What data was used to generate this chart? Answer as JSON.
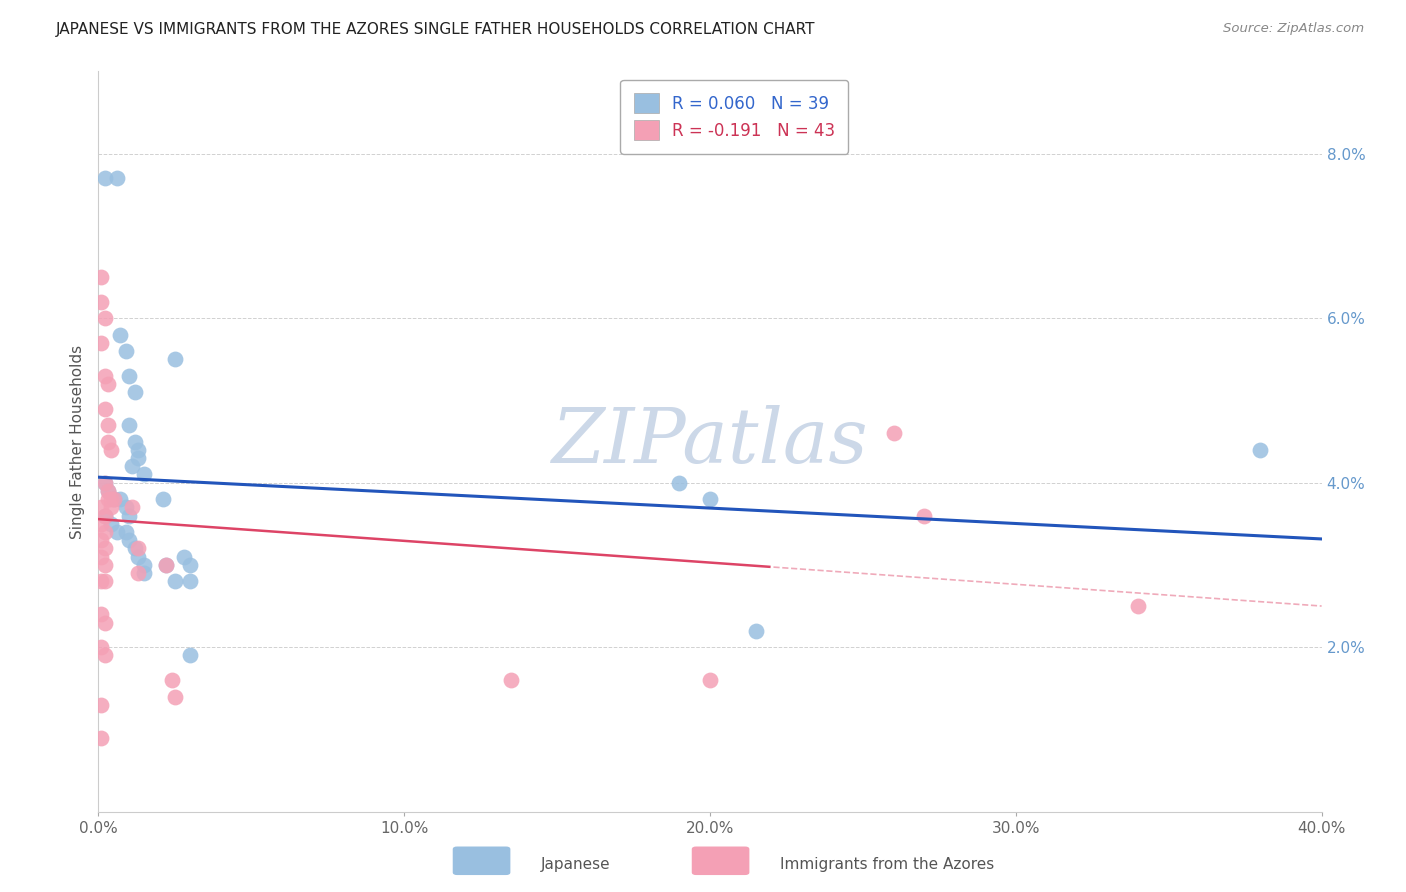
{
  "title": "JAPANESE VS IMMIGRANTS FROM THE AZORES SINGLE FATHER HOUSEHOLDS CORRELATION CHART",
  "source": "Source: ZipAtlas.com",
  "ylabel": "Single Father Households",
  "xlim": [
    0.0,
    0.4
  ],
  "ylim": [
    0.0,
    0.09
  ],
  "watermark": "ZIPatlas",
  "dot_color_japanese": "#99bfe0",
  "dot_color_azores": "#f4a0b5",
  "line_color_japanese": "#2255bb",
  "line_color_azores": "#dd4466",
  "background_color": "#ffffff",
  "watermark_color": "#ccd8e8",
  "grid_color": "#cccccc",
  "legend_label_japanese": "R = 0.060   N = 39",
  "legend_label_azores": "R = -0.191   N = 43",
  "legend_text_color_japanese": "#3366cc",
  "legend_text_color_azores": "#cc3355",
  "japanese_points": [
    [
      0.002,
      0.077
    ],
    [
      0.006,
      0.077
    ],
    [
      0.007,
      0.058
    ],
    [
      0.009,
      0.056
    ],
    [
      0.01,
      0.053
    ],
    [
      0.012,
      0.051
    ],
    [
      0.01,
      0.047
    ],
    [
      0.012,
      0.045
    ],
    [
      0.013,
      0.044
    ],
    [
      0.011,
      0.042
    ],
    [
      0.002,
      0.04
    ],
    [
      0.003,
      0.039
    ],
    [
      0.005,
      0.038
    ],
    [
      0.007,
      0.038
    ],
    [
      0.009,
      0.037
    ],
    [
      0.01,
      0.036
    ],
    [
      0.013,
      0.043
    ],
    [
      0.015,
      0.041
    ],
    [
      0.002,
      0.036
    ],
    [
      0.004,
      0.035
    ],
    [
      0.006,
      0.034
    ],
    [
      0.009,
      0.034
    ],
    [
      0.01,
      0.033
    ],
    [
      0.012,
      0.032
    ],
    [
      0.013,
      0.031
    ],
    [
      0.015,
      0.03
    ],
    [
      0.015,
      0.029
    ],
    [
      0.022,
      0.03
    ],
    [
      0.025,
      0.028
    ],
    [
      0.028,
      0.031
    ],
    [
      0.03,
      0.03
    ],
    [
      0.03,
      0.028
    ],
    [
      0.021,
      0.038
    ],
    [
      0.025,
      0.055
    ],
    [
      0.03,
      0.019
    ],
    [
      0.19,
      0.04
    ],
    [
      0.2,
      0.038
    ],
    [
      0.215,
      0.022
    ],
    [
      0.38,
      0.044
    ]
  ],
  "azores_points": [
    [
      0.001,
      0.065
    ],
    [
      0.001,
      0.062
    ],
    [
      0.002,
      0.06
    ],
    [
      0.001,
      0.057
    ],
    [
      0.002,
      0.053
    ],
    [
      0.003,
      0.052
    ],
    [
      0.002,
      0.049
    ],
    [
      0.003,
      0.047
    ],
    [
      0.003,
      0.045
    ],
    [
      0.004,
      0.044
    ],
    [
      0.002,
      0.04
    ],
    [
      0.003,
      0.039
    ],
    [
      0.004,
      0.038
    ],
    [
      0.005,
      0.038
    ],
    [
      0.001,
      0.037
    ],
    [
      0.002,
      0.036
    ],
    [
      0.001,
      0.035
    ],
    [
      0.002,
      0.034
    ],
    [
      0.001,
      0.033
    ],
    [
      0.002,
      0.032
    ],
    [
      0.001,
      0.031
    ],
    [
      0.002,
      0.03
    ],
    [
      0.003,
      0.038
    ],
    [
      0.004,
      0.037
    ],
    [
      0.001,
      0.028
    ],
    [
      0.002,
      0.028
    ],
    [
      0.001,
      0.024
    ],
    [
      0.002,
      0.023
    ],
    [
      0.001,
      0.02
    ],
    [
      0.002,
      0.019
    ],
    [
      0.011,
      0.037
    ],
    [
      0.013,
      0.032
    ],
    [
      0.013,
      0.029
    ],
    [
      0.022,
      0.03
    ],
    [
      0.024,
      0.016
    ],
    [
      0.025,
      0.014
    ],
    [
      0.135,
      0.016
    ],
    [
      0.2,
      0.016
    ],
    [
      0.001,
      0.013
    ],
    [
      0.001,
      0.009
    ],
    [
      0.26,
      0.046
    ],
    [
      0.27,
      0.036
    ],
    [
      0.34,
      0.025
    ]
  ]
}
